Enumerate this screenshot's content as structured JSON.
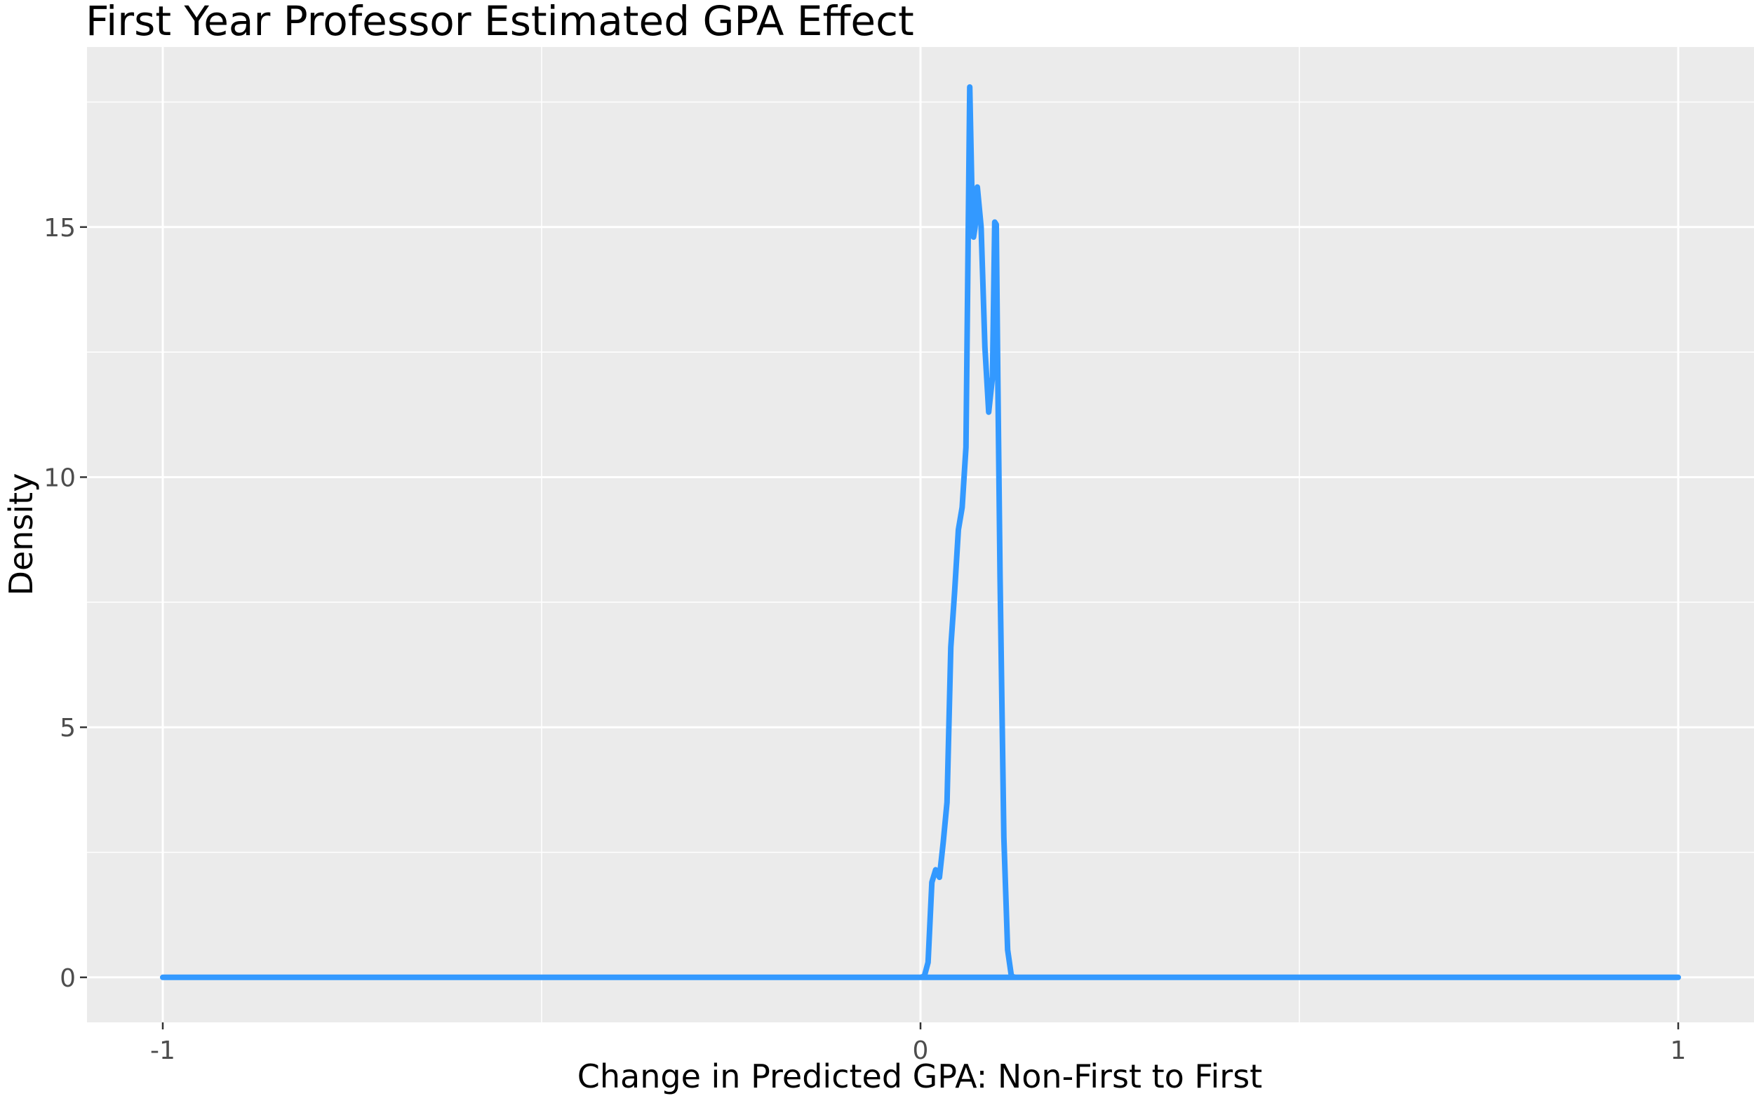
{
  "chart_data": {
    "type": "line",
    "title": "First Year Professor Estimated GPA Effect",
    "xlabel": "Change in Predicted GPA: Non-First to First",
    "ylabel": "Density",
    "xlim": [
      -1.1,
      1.1
    ],
    "ylim": [
      -0.9,
      18.6
    ],
    "x_ticks": [
      -1,
      0,
      1
    ],
    "x_tick_labels": [
      "-1",
      "0",
      "1"
    ],
    "x_minor_ticks": [
      -0.5,
      0.5
    ],
    "y_ticks": [
      0,
      5,
      10,
      15
    ],
    "y_tick_labels": [
      "0",
      "5",
      "10",
      "15"
    ],
    "y_minor_ticks": [
      2.5,
      7.5,
      12.5,
      17.5
    ],
    "grid": true,
    "legend": "none",
    "colors": {
      "line": "#3399ff",
      "panel": "#ebebeb",
      "grid": "#ffffff"
    },
    "series": [
      {
        "x": [
          -1,
          0.0,
          0.005,
          0.01,
          0.015,
          0.02,
          0.025,
          0.03,
          0.035,
          0.04,
          0.045,
          0.05,
          0.055,
          0.06,
          0.065,
          0.068,
          0.07,
          0.072,
          0.075,
          0.08,
          0.085,
          0.09,
          0.095,
          0.098,
          0.1,
          0.102,
          0.105,
          0.11,
          0.115,
          0.12,
          0.125,
          0.13,
          1
        ],
        "y": [
          0,
          0,
          0.02,
          0.3,
          1.9,
          2.15,
          2.0,
          2.7,
          3.5,
          6.6,
          7.7,
          8.95,
          9.4,
          10.6,
          17.8,
          15.6,
          14.8,
          15.0,
          15.8,
          15.0,
          12.6,
          11.3,
          12.0,
          15.1,
          15.05,
          12.0,
          8.0,
          2.8,
          0.55,
          0.02,
          0,
          0,
          0
        ]
      }
    ]
  }
}
